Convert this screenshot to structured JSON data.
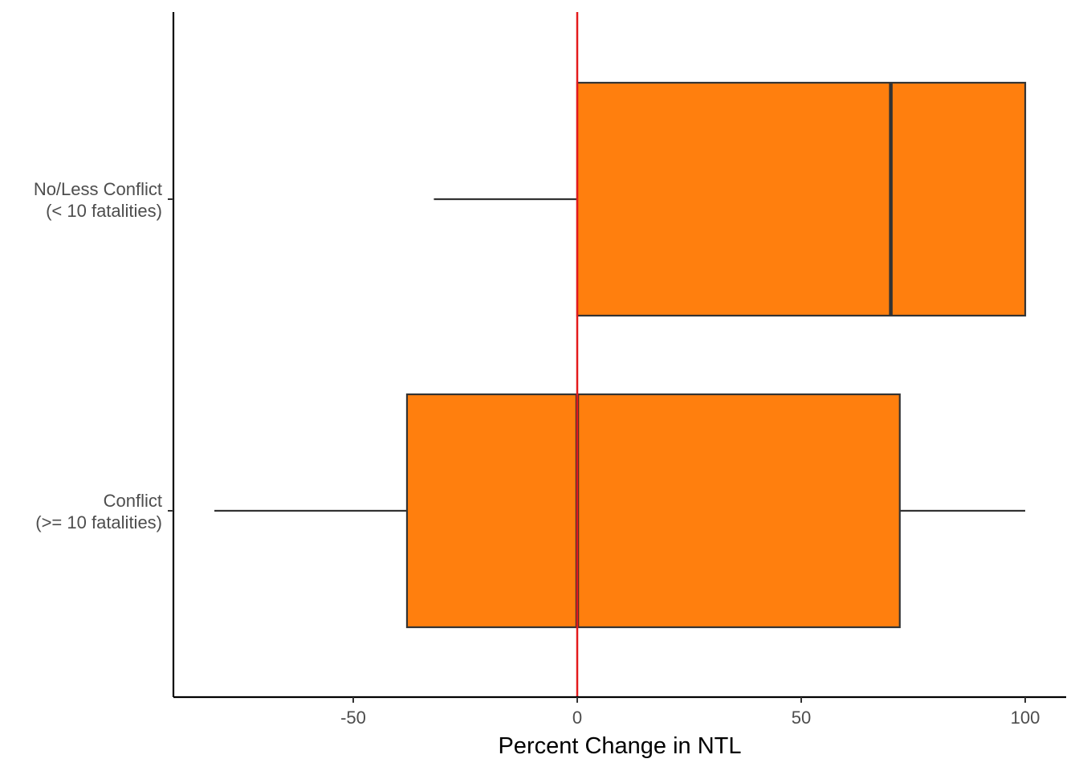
{
  "chart_data": {
    "type": "boxplot",
    "orientation": "horizontal",
    "title": "",
    "xlabel": "Percent Change in NTL",
    "ylabel": "",
    "xlim": [
      -90,
      109
    ],
    "xticks": [
      -50,
      0,
      50,
      100
    ],
    "xtick_labels": [
      "-50",
      "0",
      "50",
      "100"
    ],
    "reference_line": {
      "x": 0,
      "color": "#e41a1c"
    },
    "box_fill": "#ff7f0e",
    "box_stroke": "#333333",
    "grid": false,
    "legend": "none",
    "categories": [
      {
        "label_lines": [
          "No/Less Conflict",
          "(< 10 fatalities)"
        ],
        "whisker_low": -32,
        "q1": 0,
        "median": 70,
        "q3": 100,
        "whisker_high": 100
      },
      {
        "label_lines": [
          "Conflict",
          "(>= 10 fatalities)"
        ],
        "whisker_low": -81,
        "q1": -38,
        "median": 0,
        "q3": 72,
        "whisker_high": 100
      }
    ]
  }
}
